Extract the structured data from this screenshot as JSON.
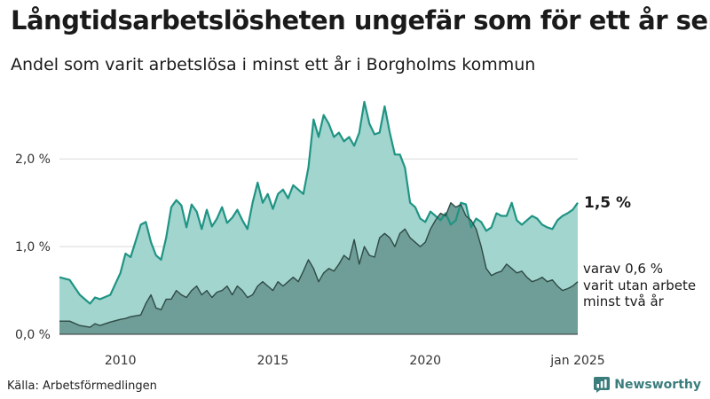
{
  "title": "Långtidsarbetslösheten ungefär som för ett år sen",
  "subtitle": "Andel som varit arbetslösa i minst ett år i Borgholms kommun",
  "source": "Källa: Arbetsförmedlingen",
  "brand": "Newsworthy",
  "brand_icon": "newsworthy-logo-icon",
  "colors": {
    "area_total": "#a3d5cf",
    "line_total": "#1f9484",
    "area_long": "#6e9e97",
    "line_long": "#2f4a45",
    "grid": "#d9d9d9",
    "brand": "#3a7d7c"
  },
  "chart_data": {
    "type": "area",
    "title": "Långtidsarbetslösheten ungefär som för ett år sen",
    "subtitle": "Andel som varit arbetslösa i minst ett år i Borgholms kommun",
    "xlabel": "",
    "ylabel": "",
    "x_range": [
      "2008-01",
      "2025-01"
    ],
    "ylim": [
      0,
      2.7
    ],
    "y_ticks": [
      0,
      1,
      2
    ],
    "y_tick_labels": [
      "0,0 %",
      "1,0 %",
      "2,0 %"
    ],
    "x_ticks": [
      "2010-01",
      "2015-01",
      "2020-01",
      "2025-01"
    ],
    "x_tick_labels": [
      "2010",
      "2015",
      "2020",
      "jan 2025"
    ],
    "grid": true,
    "series": [
      {
        "name": "1,5 %",
        "x": [
          "2008-01",
          "2008-05",
          "2008-09",
          "2009-01",
          "2009-03",
          "2009-05",
          "2009-09",
          "2010-01",
          "2010-03",
          "2010-05",
          "2010-09",
          "2010-11",
          "2011-01",
          "2011-03",
          "2011-05",
          "2011-07",
          "2011-09",
          "2011-11",
          "2012-01",
          "2012-03",
          "2012-05",
          "2012-07",
          "2012-09",
          "2012-11",
          "2013-01",
          "2013-03",
          "2013-05",
          "2013-07",
          "2013-09",
          "2013-11",
          "2014-01",
          "2014-03",
          "2014-05",
          "2014-07",
          "2014-09",
          "2014-11",
          "2015-01",
          "2015-03",
          "2015-05",
          "2015-07",
          "2015-09",
          "2015-11",
          "2016-01",
          "2016-03",
          "2016-05",
          "2016-07",
          "2016-09",
          "2016-11",
          "2017-01",
          "2017-03",
          "2017-05",
          "2017-07",
          "2017-09",
          "2017-11",
          "2018-01",
          "2018-03",
          "2018-05",
          "2018-07",
          "2018-09",
          "2018-11",
          "2019-01",
          "2019-03",
          "2019-05",
          "2019-07",
          "2019-09",
          "2019-11",
          "2020-01",
          "2020-03",
          "2020-05",
          "2020-07",
          "2020-09",
          "2020-11",
          "2021-01",
          "2021-03",
          "2021-05",
          "2021-07",
          "2021-09",
          "2021-11",
          "2022-01",
          "2022-03",
          "2022-05",
          "2022-07",
          "2022-09",
          "2022-11",
          "2023-01",
          "2023-03",
          "2023-05",
          "2023-07",
          "2023-09",
          "2023-11",
          "2024-01",
          "2024-03",
          "2024-05",
          "2024-07",
          "2024-09",
          "2024-11",
          "2025-01"
        ],
        "values": [
          0.65,
          0.62,
          0.45,
          0.35,
          0.42,
          0.4,
          0.45,
          0.7,
          0.92,
          0.88,
          1.25,
          1.28,
          1.05,
          0.9,
          0.85,
          1.1,
          1.45,
          1.53,
          1.47,
          1.22,
          1.48,
          1.4,
          1.2,
          1.42,
          1.23,
          1.32,
          1.45,
          1.27,
          1.33,
          1.42,
          1.3,
          1.2,
          1.5,
          1.73,
          1.5,
          1.6,
          1.43,
          1.6,
          1.65,
          1.55,
          1.7,
          1.65,
          1.6,
          1.9,
          2.45,
          2.25,
          2.5,
          2.4,
          2.25,
          2.3,
          2.2,
          2.25,
          2.15,
          2.3,
          2.65,
          2.4,
          2.28,
          2.3,
          2.6,
          2.3,
          2.05,
          2.05,
          1.9,
          1.5,
          1.45,
          1.32,
          1.28,
          1.4,
          1.35,
          1.3,
          1.38,
          1.25,
          1.3,
          1.5,
          1.48,
          1.22,
          1.32,
          1.28,
          1.18,
          1.22,
          1.38,
          1.35,
          1.35,
          1.5,
          1.3,
          1.25,
          1.3,
          1.35,
          1.32,
          1.25,
          1.22,
          1.2,
          1.3,
          1.35,
          1.38,
          1.42,
          1.5
        ]
      },
      {
        "name": "varav 0,6 % varit utan arbete minst två år",
        "x": [
          "2008-01",
          "2008-05",
          "2008-09",
          "2009-01",
          "2009-03",
          "2009-05",
          "2009-09",
          "2010-01",
          "2010-03",
          "2010-05",
          "2010-09",
          "2010-11",
          "2011-01",
          "2011-03",
          "2011-05",
          "2011-07",
          "2011-09",
          "2011-11",
          "2012-01",
          "2012-03",
          "2012-05",
          "2012-07",
          "2012-09",
          "2012-11",
          "2013-01",
          "2013-03",
          "2013-05",
          "2013-07",
          "2013-09",
          "2013-11",
          "2014-01",
          "2014-03",
          "2014-05",
          "2014-07",
          "2014-09",
          "2014-11",
          "2015-01",
          "2015-03",
          "2015-05",
          "2015-07",
          "2015-09",
          "2015-11",
          "2016-01",
          "2016-03",
          "2016-05",
          "2016-07",
          "2016-09",
          "2016-11",
          "2017-01",
          "2017-03",
          "2017-05",
          "2017-07",
          "2017-09",
          "2017-11",
          "2018-01",
          "2018-03",
          "2018-05",
          "2018-07",
          "2018-09",
          "2018-11",
          "2019-01",
          "2019-03",
          "2019-05",
          "2019-07",
          "2019-09",
          "2019-11",
          "2020-01",
          "2020-03",
          "2020-05",
          "2020-07",
          "2020-09",
          "2020-11",
          "2021-01",
          "2021-03",
          "2021-05",
          "2021-07",
          "2021-09",
          "2021-11",
          "2022-01",
          "2022-03",
          "2022-05",
          "2022-07",
          "2022-09",
          "2022-11",
          "2023-01",
          "2023-03",
          "2023-05",
          "2023-07",
          "2023-09",
          "2023-11",
          "2024-01",
          "2024-03",
          "2024-05",
          "2024-07",
          "2024-09",
          "2024-11",
          "2025-01"
        ],
        "values": [
          0.15,
          0.15,
          0.1,
          0.08,
          0.12,
          0.1,
          0.14,
          0.17,
          0.18,
          0.2,
          0.22,
          0.35,
          0.45,
          0.3,
          0.28,
          0.4,
          0.4,
          0.5,
          0.45,
          0.42,
          0.5,
          0.55,
          0.45,
          0.5,
          0.42,
          0.48,
          0.5,
          0.55,
          0.45,
          0.55,
          0.5,
          0.42,
          0.45,
          0.55,
          0.6,
          0.55,
          0.5,
          0.6,
          0.55,
          0.6,
          0.65,
          0.6,
          0.72,
          0.85,
          0.75,
          0.6,
          0.7,
          0.75,
          0.72,
          0.8,
          0.9,
          0.85,
          1.08,
          0.8,
          1.0,
          0.9,
          0.88,
          1.1,
          1.15,
          1.1,
          1.0,
          1.15,
          1.2,
          1.1,
          1.05,
          1.0,
          1.05,
          1.2,
          1.3,
          1.38,
          1.35,
          1.5,
          1.45,
          1.48,
          1.35,
          1.3,
          1.2,
          1.0,
          0.75,
          0.67,
          0.7,
          0.72,
          0.8,
          0.75,
          0.7,
          0.72,
          0.65,
          0.6,
          0.62,
          0.65,
          0.6,
          0.62,
          0.55,
          0.5,
          0.52,
          0.55,
          0.6
        ]
      }
    ],
    "end_labels": [
      "1,5 %",
      "varav 0,6 %",
      "varit utan arbete",
      "minst två år"
    ]
  }
}
